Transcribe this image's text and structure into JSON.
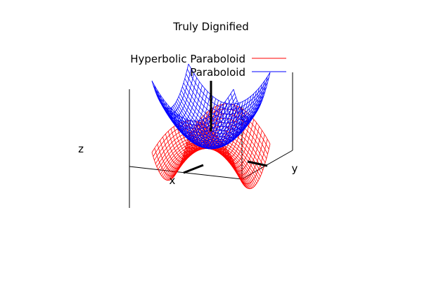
{
  "chart_data": {
    "type": "surface",
    "title": "Truly Dignified",
    "xlabel": "x",
    "ylabel": "y",
    "zlabel": "z",
    "legend_position": "top-right",
    "grid": false,
    "series": [
      {
        "name": "Hyperbolic Paraboloid",
        "function": "z = x^2 - y^2",
        "x_range": [
          -1,
          1
        ],
        "y_range": [
          -1,
          1
        ],
        "mesh": [
          30,
          30
        ],
        "color": "#ff0000"
      },
      {
        "name": "Paraboloid",
        "function": "z = x^2 + y^2",
        "x_range": [
          -1,
          1
        ],
        "y_range": [
          -1,
          1
        ],
        "mesh": [
          30,
          30
        ],
        "color": "#0000ff"
      }
    ]
  }
}
